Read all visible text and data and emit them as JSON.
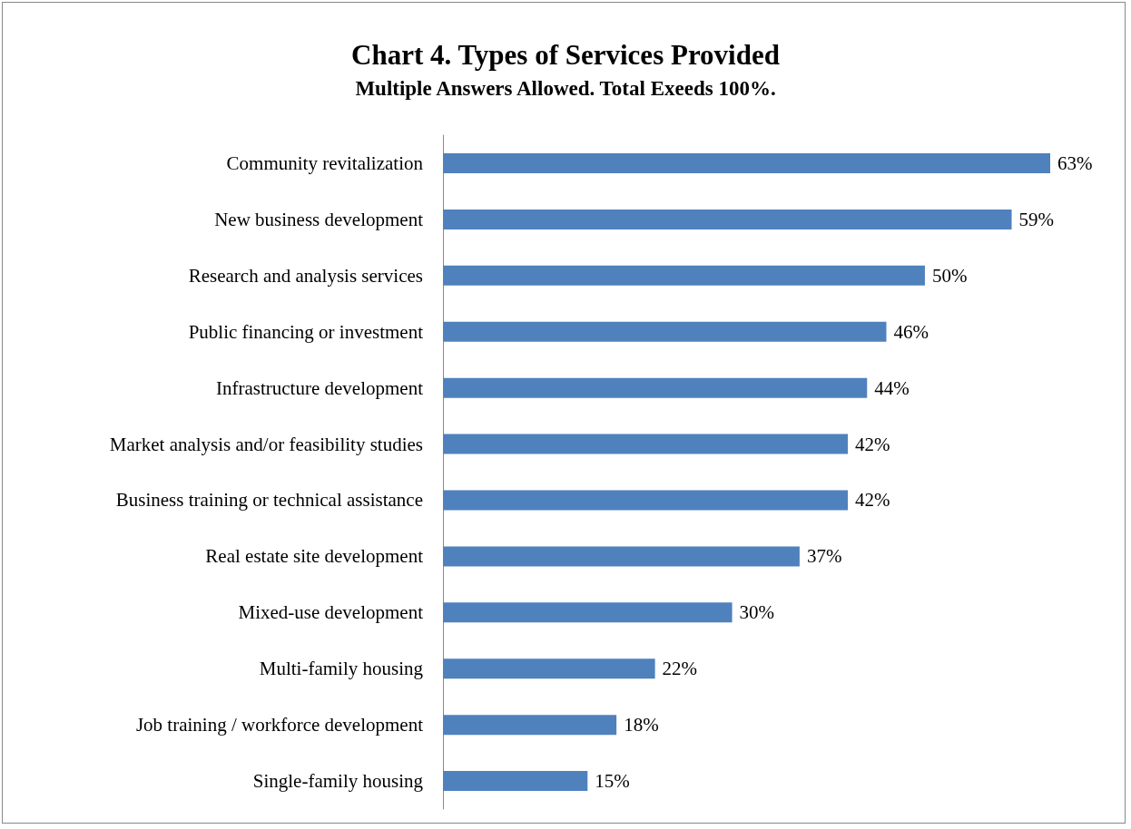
{
  "chart_data": {
    "type": "bar",
    "orientation": "horizontal",
    "title": "Chart 4. Types of Services Provided",
    "subtitle": "Multiple Answers Allowed. Total Exeeds 100%.",
    "categories": [
      "Community revitalization",
      "New business development",
      "Research and analysis services",
      "Public financing or investment",
      "Infrastructure development",
      "Market analysis and/or feasibility studies",
      "Business training or technical assistance",
      "Real estate site development",
      "Mixed-use development",
      "Multi-family housing",
      "Job training / workforce development",
      "Single-family housing"
    ],
    "values": [
      63,
      59,
      50,
      46,
      44,
      42,
      42,
      37,
      30,
      22,
      18,
      15
    ],
    "value_labels": [
      "63%",
      "59%",
      "50%",
      "46%",
      "44%",
      "42%",
      "42%",
      "37%",
      "30%",
      "22%",
      "18%",
      "15%"
    ],
    "color": "#4f81bd"
  }
}
